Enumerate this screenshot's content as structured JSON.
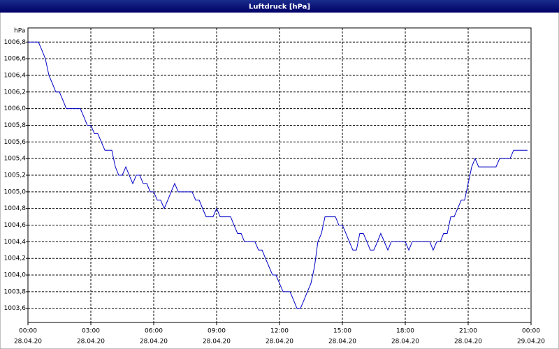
{
  "chart_data": {
    "type": "line",
    "title": "Luftdruck [hPa]",
    "y_unit": "hPa",
    "x": [
      0,
      0.5,
      0.67,
      0.83,
      1,
      1.17,
      1.33,
      1.5,
      1.67,
      1.83,
      2.5,
      2.67,
      2.83,
      3,
      3.17,
      3.33,
      3.5,
      3.67,
      4,
      4.17,
      4.33,
      4.5,
      4.67,
      4.83,
      5,
      5.17,
      5.33,
      5.5,
      5.67,
      5.83,
      6,
      6.17,
      6.33,
      6.5,
      6.67,
      6.83,
      7,
      7.17,
      7.83,
      8,
      8.17,
      8.33,
      8.5,
      8.83,
      9,
      9.17,
      9.67,
      9.83,
      10,
      10.17,
      10.33,
      10.83,
      11,
      11.17,
      11.33,
      11.5,
      11.67,
      11.83,
      12,
      12.17,
      12.5,
      12.67,
      12.83,
      13,
      13.17,
      13.33,
      13.5,
      13.67,
      13.83,
      14,
      14.17,
      14.67,
      14.83,
      15,
      15.17,
      15.33,
      15.5,
      15.67,
      15.83,
      16,
      16.17,
      16.33,
      16.5,
      16.67,
      16.83,
      17,
      17.17,
      17.33,
      18,
      18.17,
      18.33,
      19.17,
      19.33,
      19.5,
      19.67,
      19.83,
      20,
      20.17,
      20.33,
      20.5,
      20.67,
      20.83,
      21,
      21.17,
      21.33,
      21.5,
      22.33,
      22.5,
      23,
      23.17,
      23.83
    ],
    "series": [
      {
        "name": "Luftdruck",
        "color": "#0000c8",
        "values": [
          1006.8,
          1006.8,
          1006.7,
          1006.6,
          1006.4,
          1006.3,
          1006.2,
          1006.2,
          1006.1,
          1006.0,
          1006.0,
          1005.9,
          1005.8,
          1005.8,
          1005.7,
          1005.7,
          1005.6,
          1005.5,
          1005.5,
          1005.3,
          1005.2,
          1005.2,
          1005.3,
          1005.2,
          1005.1,
          1005.2,
          1005.2,
          1005.1,
          1005.1,
          1005.0,
          1005.0,
          1004.9,
          1004.9,
          1004.8,
          1004.9,
          1005.0,
          1005.1,
          1005.0,
          1005.0,
          1004.9,
          1004.9,
          1004.8,
          1004.7,
          1004.7,
          1004.8,
          1004.7,
          1004.7,
          1004.6,
          1004.5,
          1004.5,
          1004.4,
          1004.4,
          1004.3,
          1004.3,
          1004.2,
          1004.1,
          1004.0,
          1004.0,
          1003.9,
          1003.8,
          1003.8,
          1003.7,
          1003.6,
          1003.6,
          1003.7,
          1003.8,
          1003.9,
          1004.1,
          1004.4,
          1004.5,
          1004.7,
          1004.7,
          1004.6,
          1004.6,
          1004.5,
          1004.4,
          1004.3,
          1004.3,
          1004.5,
          1004.5,
          1004.4,
          1004.3,
          1004.3,
          1004.4,
          1004.5,
          1004.4,
          1004.3,
          1004.4,
          1004.4,
          1004.3,
          1004.4,
          1004.4,
          1004.3,
          1004.4,
          1004.4,
          1004.5,
          1004.5,
          1004.7,
          1004.7,
          1004.8,
          1004.9,
          1004.9,
          1005.1,
          1005.3,
          1005.4,
          1005.3,
          1005.3,
          1005.4,
          1005.4,
          1005.5,
          1005.5
        ]
      }
    ],
    "xlim": [
      0,
      24
    ],
    "xticks": [
      {
        "value": 0,
        "label": "00:00"
      },
      {
        "value": 3,
        "label": "03:00"
      },
      {
        "value": 6,
        "label": "06:00"
      },
      {
        "value": 9,
        "label": "09:00"
      },
      {
        "value": 12,
        "label": "12:00"
      },
      {
        "value": 15,
        "label": "15:00"
      },
      {
        "value": 18,
        "label": "18:00"
      },
      {
        "value": 21,
        "label": "21:00"
      },
      {
        "value": 24,
        "label": "00:00"
      }
    ],
    "xtick_dates": [
      "28.04.20",
      "28.04.20",
      "28.04.20",
      "28.04.20",
      "28.04.20",
      "28.04.20",
      "28.04.20",
      "28.04.20",
      "29.04.20"
    ],
    "ylim": [
      1003.43,
      1006.97
    ],
    "yticks": [
      {
        "value": 1003.6,
        "label": "1003,6"
      },
      {
        "value": 1003.8,
        "label": "1003,8"
      },
      {
        "value": 1004.0,
        "label": "1004,0"
      },
      {
        "value": 1004.2,
        "label": "1004,2"
      },
      {
        "value": 1004.4,
        "label": "1004,4"
      },
      {
        "value": 1004.6,
        "label": "1004,6"
      },
      {
        "value": 1004.8,
        "label": "1004,8"
      },
      {
        "value": 1005.0,
        "label": "1005,0"
      },
      {
        "value": 1005.2,
        "label": "1005,2"
      },
      {
        "value": 1005.4,
        "label": "1005,4"
      },
      {
        "value": 1005.6,
        "label": "1005,6"
      },
      {
        "value": 1005.8,
        "label": "1005,8"
      },
      {
        "value": 1006.0,
        "label": "1006,0"
      },
      {
        "value": 1006.2,
        "label": "1006,2"
      },
      {
        "value": 1006.4,
        "label": "1006,4"
      },
      {
        "value": 1006.6,
        "label": "1006,6"
      },
      {
        "value": 1006.8,
        "label": "1006,8"
      }
    ],
    "grid": true
  }
}
